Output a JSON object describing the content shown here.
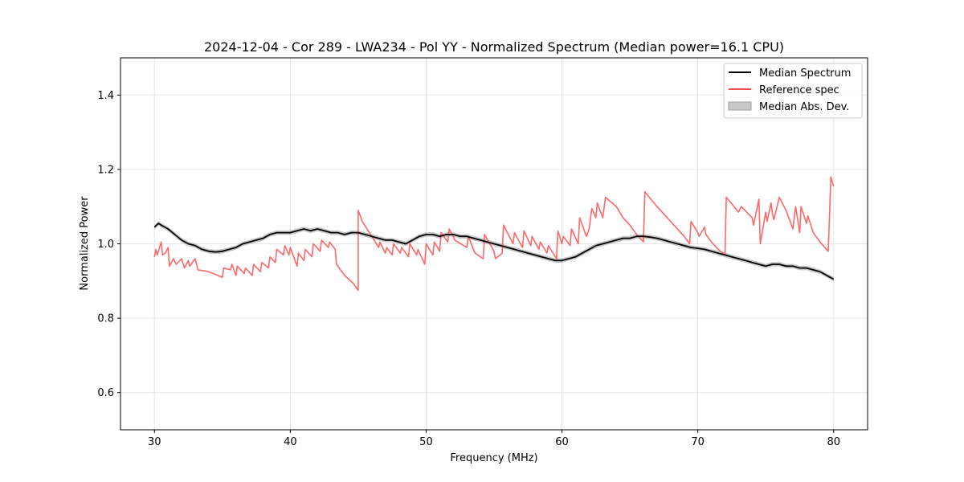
{
  "chart_data": {
    "type": "line",
    "title": "2024-12-04 - Cor 289 - LWA234 - Pol YY - Normalized Spectrum (Median power=16.1 CPU)",
    "xlabel": "Frequency (MHz)",
    "ylabel": "Normalized Power",
    "xlim": [
      27.5,
      82.5
    ],
    "ylim": [
      0.5,
      1.5
    ],
    "xticks": [
      30,
      40,
      50,
      60,
      70,
      80
    ],
    "xtick_labels": [
      "30",
      "40",
      "50",
      "60",
      "70",
      "80"
    ],
    "yticks": [
      0.6,
      0.8,
      1.0,
      1.2,
      1.4
    ],
    "ytick_labels": [
      "0.6",
      "0.8",
      "1.0",
      "1.2",
      "1.4"
    ],
    "grid": true,
    "legend": {
      "location": "top-right",
      "entries": [
        "Median Spectrum",
        "Reference spec",
        "Median Abs. Dev."
      ]
    },
    "series": [
      {
        "name": "Median Spectrum",
        "color": "#000000",
        "x": [
          30.0,
          30.3,
          30.5,
          31.0,
          31.5,
          32.0,
          32.5,
          33.0,
          33.5,
          34.0,
          34.5,
          35.0,
          35.5,
          36.0,
          36.5,
          37.0,
          37.5,
          38.0,
          38.5,
          39.0,
          39.5,
          40.0,
          40.5,
          41.0,
          41.5,
          42.0,
          42.5,
          43.0,
          43.5,
          44.0,
          44.5,
          45.0,
          45.5,
          46.0,
          46.5,
          47.0,
          47.5,
          48.0,
          48.5,
          49.0,
          49.5,
          50.0,
          50.5,
          51.0,
          51.5,
          52.0,
          52.5,
          53.0,
          53.5,
          54.0,
          54.5,
          55.0,
          55.5,
          56.0,
          56.5,
          57.0,
          57.5,
          58.0,
          58.5,
          59.0,
          59.5,
          60.0,
          60.5,
          61.0,
          61.5,
          62.0,
          62.5,
          63.0,
          63.5,
          64.0,
          64.5,
          65.0,
          65.5,
          66.0,
          66.5,
          67.0,
          67.5,
          68.0,
          68.5,
          69.0,
          69.5,
          70.0,
          70.5,
          71.0,
          71.5,
          72.0,
          72.5,
          73.0,
          73.5,
          74.0,
          74.5,
          75.0,
          75.5,
          76.0,
          76.5,
          77.0,
          77.5,
          78.0,
          78.5,
          79.0,
          79.5,
          80.0
        ],
        "y": [
          1.045,
          1.055,
          1.05,
          1.04,
          1.025,
          1.01,
          1.0,
          0.995,
          0.985,
          0.98,
          0.978,
          0.98,
          0.985,
          0.99,
          1.0,
          1.005,
          1.01,
          1.015,
          1.025,
          1.03,
          1.03,
          1.03,
          1.035,
          1.04,
          1.035,
          1.04,
          1.035,
          1.03,
          1.03,
          1.025,
          1.03,
          1.03,
          1.025,
          1.02,
          1.015,
          1.01,
          1.01,
          1.005,
          1.0,
          1.01,
          1.02,
          1.025,
          1.025,
          1.02,
          1.025,
          1.025,
          1.02,
          1.02,
          1.015,
          1.01,
          1.005,
          1.0,
          0.995,
          0.99,
          0.985,
          0.98,
          0.975,
          0.97,
          0.965,
          0.96,
          0.955,
          0.955,
          0.96,
          0.965,
          0.975,
          0.985,
          0.995,
          1.0,
          1.005,
          1.01,
          1.015,
          1.015,
          1.02,
          1.02,
          1.018,
          1.015,
          1.01,
          1.005,
          1.0,
          0.995,
          0.99,
          0.988,
          0.985,
          0.98,
          0.975,
          0.97,
          0.965,
          0.96,
          0.955,
          0.95,
          0.945,
          0.94,
          0.945,
          0.945,
          0.94,
          0.94,
          0.935,
          0.935,
          0.93,
          0.925,
          0.915,
          0.905
        ]
      },
      {
        "name": "Reference spec",
        "color": "#ff4d4d",
        "x": [
          30.0,
          30.1,
          30.2,
          30.5,
          30.6,
          30.8,
          31.0,
          31.1,
          31.4,
          31.6,
          32.0,
          32.2,
          32.5,
          32.6,
          33.0,
          33.2,
          34.0,
          35.0,
          35.1,
          35.6,
          35.7,
          36.0,
          36.1,
          36.6,
          36.7,
          37.2,
          37.3,
          37.8,
          37.9,
          38.4,
          38.5,
          38.9,
          39.0,
          39.5,
          39.6,
          39.9,
          40.0,
          40.5,
          40.6,
          41.0,
          41.1,
          41.6,
          41.7,
          42.2,
          42.3,
          42.8,
          42.9,
          43.3,
          43.4,
          44.0,
          44.6,
          45.0,
          45.0,
          45.3,
          46.0,
          46.5,
          46.6,
          47.0,
          47.1,
          47.5,
          47.6,
          48.1,
          48.2,
          48.7,
          48.8,
          49.3,
          49.4,
          49.9,
          50.0,
          50.5,
          50.6,
          51.0,
          51.1,
          51.6,
          51.7,
          52.0,
          52.1,
          53.0,
          53.1,
          53.6,
          54.2,
          54.3,
          55.0,
          55.1,
          55.6,
          55.7,
          56.4,
          56.5,
          57.1,
          57.2,
          57.7,
          57.8,
          58.3,
          58.4,
          58.9,
          59.0,
          59.6,
          59.7,
          60.0,
          60.1,
          60.6,
          60.7,
          61.2,
          61.3,
          61.8,
          62.0,
          62.2,
          62.5,
          62.6,
          63.0,
          63.2,
          64.0,
          64.5,
          65.0,
          65.5,
          66.0,
          66.1,
          67.0,
          68.0,
          69.0,
          69.4,
          69.5,
          70.0,
          70.1,
          70.5,
          70.6,
          71.0,
          71.5,
          72.0,
          72.1,
          73.0,
          73.2,
          74.0,
          74.1,
          74.5,
          74.6,
          75.0,
          75.1,
          75.4,
          75.5,
          75.6,
          76.0,
          76.5,
          77.0,
          77.2,
          77.5,
          77.6,
          78.0,
          78.1,
          78.5,
          79.0,
          79.6,
          79.8,
          80.0
        ],
        "y": [
          0.965,
          0.985,
          0.97,
          1.005,
          0.97,
          0.975,
          0.99,
          0.94,
          0.96,
          0.945,
          0.96,
          0.935,
          0.955,
          0.94,
          0.96,
          0.93,
          0.925,
          0.91,
          0.935,
          0.93,
          0.945,
          0.915,
          0.94,
          0.92,
          0.935,
          0.915,
          0.945,
          0.925,
          0.95,
          0.935,
          0.965,
          0.95,
          0.985,
          0.97,
          0.995,
          0.97,
          0.99,
          0.94,
          0.975,
          0.955,
          0.985,
          0.965,
          1.0,
          0.98,
          1.01,
          0.99,
          1.005,
          0.985,
          0.945,
          0.915,
          0.895,
          0.875,
          1.09,
          1.06,
          1.02,
          0.99,
          1.005,
          0.975,
          0.99,
          0.97,
          1.0,
          0.975,
          0.99,
          0.965,
          1.0,
          0.97,
          0.985,
          0.945,
          1.0,
          0.97,
          1.005,
          0.98,
          1.03,
          1.005,
          1.04,
          1.02,
          1.01,
          0.99,
          1.02,
          0.975,
          0.96,
          1.025,
          0.98,
          0.96,
          0.975,
          1.05,
          1.0,
          1.03,
          0.99,
          1.035,
          0.995,
          1.02,
          0.985,
          1.005,
          0.975,
          0.995,
          0.96,
          1.035,
          1.0,
          1.02,
          0.995,
          1.04,
          1.0,
          1.07,
          1.02,
          1.04,
          1.095,
          1.07,
          1.11,
          1.07,
          1.125,
          1.1,
          1.07,
          1.05,
          1.025,
          1.005,
          1.14,
          1.1,
          1.06,
          1.02,
          1.0,
          1.06,
          1.03,
          1.02,
          1.045,
          1.025,
          1.005,
          0.985,
          0.97,
          1.125,
          1.085,
          1.1,
          1.07,
          1.05,
          1.12,
          1.0,
          1.085,
          1.06,
          1.11,
          1.08,
          1.065,
          1.125,
          1.09,
          1.04,
          1.1,
          1.03,
          1.1,
          1.055,
          1.075,
          1.03,
          1.005,
          0.98,
          1.18,
          1.155
        ]
      }
    ],
    "band": {
      "name": "Median Abs. Dev.",
      "of_series": "Median Spectrum",
      "halfwidth": 0.006,
      "color": "#b0b0b0"
    }
  }
}
